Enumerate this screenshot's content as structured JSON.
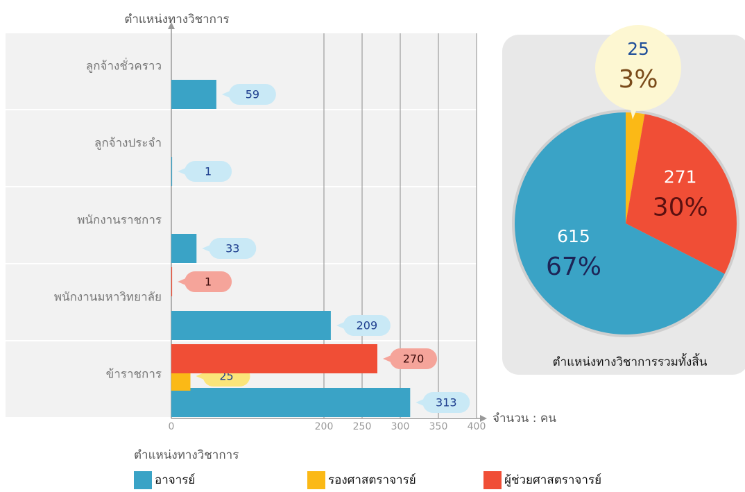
{
  "chart_data": [
    {
      "type": "bar",
      "orientation": "horizontal",
      "y_axis_title": "ตำแหน่งทางวิชาการ",
      "x_axis_title": "จำนวน : คน",
      "legend_title": "ตำแหน่งทางวิชาการ",
      "categories": [
        "ลูกจ้างชั่วคราว",
        "ลูกจ้างประจำ",
        "พนักงานราชการ",
        "พนักงานมหาวิทยาลัย",
        "ข้าราชการ"
      ],
      "series": [
        {
          "name": "อาจารย์",
          "color": "#3aa3c6",
          "values": [
            59,
            1,
            33,
            209,
            313
          ]
        },
        {
          "name": "รองศาสตราจารย์",
          "color": "#fbb916",
          "values": [
            null,
            null,
            null,
            null,
            25
          ]
        },
        {
          "name": "ผู้ช่วยศาสตราจารย์",
          "color": "#f04e36",
          "values": [
            null,
            null,
            null,
            1,
            270
          ]
        }
      ],
      "xlim": [
        0,
        400
      ],
      "xticks": [
        0,
        200,
        250,
        300,
        350,
        400
      ],
      "grid": true,
      "legend": "bottom"
    },
    {
      "type": "pie",
      "title": "ตำแหน่งทางวิชาการรวมทั้งสิ้น",
      "categories": [
        "รองศาสตราจารย์",
        "ผู้ช่วยศาสตราจารย์",
        "อาจารย์"
      ],
      "values": [
        25,
        271,
        615
      ],
      "percentage_labels": [
        "3%",
        "30%",
        "67%"
      ],
      "colors": [
        "#fbb916",
        "#f04e36",
        "#3aa3c6"
      ]
    }
  ]
}
